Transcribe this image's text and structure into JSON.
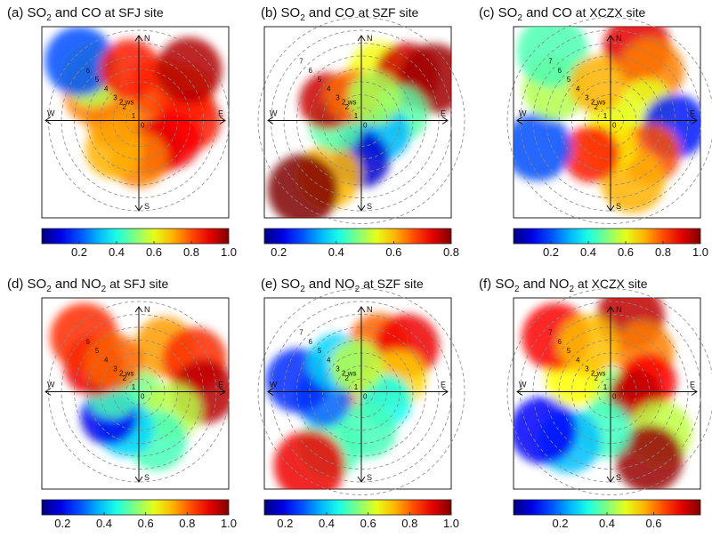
{
  "chart_data": [
    {
      "type": "heatmap",
      "label": "(a)",
      "pollutant": "SO",
      "sub": "2",
      "tail": " and CO",
      "at": " at ",
      "site": "SFJ",
      "site_word": " site",
      "compass": {
        "n": "N",
        "e": "E",
        "s": "S",
        "w": "W"
      },
      "ws_label": "2 ws",
      "ring_labels": [
        "0",
        "1",
        "2",
        "3",
        "4",
        "5",
        "6"
      ],
      "colorbar": {
        "min": 0.0,
        "max": 1.0,
        "ticks": [
          "0.2",
          "0.4",
          "0.6",
          "0.8",
          "1.0"
        ],
        "tick_values": [
          0.2,
          0.4,
          0.6,
          0.8,
          1.0
        ]
      },
      "blobs": [
        {
          "angle": 0,
          "ws": 0,
          "value": 0.78
        },
        {
          "angle": 30,
          "ws": 3,
          "value": 0.8
        },
        {
          "angle": 60,
          "ws": 4,
          "value": 0.82
        },
        {
          "angle": 90,
          "ws": 4,
          "value": 0.85
        },
        {
          "angle": 120,
          "ws": 3,
          "value": 0.88
        },
        {
          "angle": 150,
          "ws": 2.5,
          "value": 0.9
        },
        {
          "angle": 180,
          "ws": 3,
          "value": 0.75
        },
        {
          "angle": 220,
          "ws": 3,
          "value": 0.7
        },
        {
          "angle": 270,
          "ws": 2,
          "value": 0.72
        },
        {
          "angle": 300,
          "ws": 4,
          "value": 0.75
        },
        {
          "angle": 315,
          "ws": 5,
          "value": 0.55
        },
        {
          "angle": 315,
          "ws": 6.5,
          "value": 0.2
        },
        {
          "angle": 350,
          "ws": 4,
          "value": 0.85
        },
        {
          "angle": 45,
          "ws": 5.5,
          "value": 0.95
        }
      ]
    },
    {
      "type": "heatmap",
      "label": "(b)",
      "pollutant": "SO",
      "sub": "2",
      "tail": " and CO",
      "at": " at ",
      "site": "SZF",
      "site_word": " site",
      "compass": {
        "n": "N",
        "e": "E",
        "s": "S",
        "w": "W"
      },
      "ws_label": "2 ws",
      "ring_labels": [
        "0",
        "1",
        "2",
        "3",
        "4",
        "5",
        "6",
        "7"
      ],
      "colorbar": {
        "min": 0.15,
        "max": 0.8,
        "ticks": [
          "0.2",
          "0.4",
          "0.6",
          "0.8"
        ],
        "tick_values": [
          0.2,
          0.4,
          0.6,
          0.8
        ]
      },
      "blobs": [
        {
          "angle": 0,
          "ws": 0,
          "value": 0.3
        },
        {
          "angle": 20,
          "ws": 4,
          "value": 0.55
        },
        {
          "angle": 45,
          "ws": 5,
          "value": 0.75
        },
        {
          "angle": 60,
          "ws": 6.5,
          "value": 0.78
        },
        {
          "angle": 80,
          "ws": 3,
          "value": 0.45
        },
        {
          "angle": 120,
          "ws": 2,
          "value": 0.35
        },
        {
          "angle": 180,
          "ws": 3,
          "value": 0.2
        },
        {
          "angle": 210,
          "ws": 5,
          "value": 0.6
        },
        {
          "angle": 220,
          "ws": 7,
          "value": 0.8
        },
        {
          "angle": 260,
          "ws": 2,
          "value": 0.45
        },
        {
          "angle": 300,
          "ws": 3,
          "value": 0.75
        },
        {
          "angle": 340,
          "ws": 2,
          "value": 0.65
        },
        {
          "angle": 30,
          "ws": 2,
          "value": 0.5
        }
      ]
    },
    {
      "type": "heatmap",
      "label": "(c)",
      "pollutant": "SO",
      "sub": "2",
      "tail": " and CO",
      "at": " at ",
      "site": "XCZX",
      "site_word": " site",
      "compass": {
        "n": "N",
        "e": "E",
        "s": "S",
        "w": "W"
      },
      "ws_label": "2 ws",
      "ring_labels": [
        "0",
        "1",
        "2",
        "3",
        "4",
        "5",
        "6",
        "7"
      ],
      "colorbar": {
        "min": 0.0,
        "max": 1.0,
        "ticks": [
          "0.2",
          "0.4",
          "0.6",
          "0.8",
          "1.0"
        ],
        "tick_values": [
          0.2,
          0.4,
          0.6,
          0.8,
          1.0
        ]
      },
      "blobs": [
        {
          "angle": 0,
          "ws": 0,
          "value": 0.6
        },
        {
          "angle": 20,
          "ws": 6,
          "value": 0.9
        },
        {
          "angle": 40,
          "ws": 5,
          "value": 0.75
        },
        {
          "angle": 70,
          "ws": 3,
          "value": 0.6
        },
        {
          "angle": 95,
          "ws": 5,
          "value": 0.15
        },
        {
          "angle": 130,
          "ws": 4,
          "value": 0.8
        },
        {
          "angle": 160,
          "ws": 5,
          "value": 0.7
        },
        {
          "angle": 180,
          "ws": 2,
          "value": 0.65
        },
        {
          "angle": 210,
          "ws": 3,
          "value": 0.85
        },
        {
          "angle": 250,
          "ws": 6,
          "value": 0.2
        },
        {
          "angle": 300,
          "ws": 5,
          "value": 0.55
        },
        {
          "angle": 320,
          "ws": 7,
          "value": 0.45
        },
        {
          "angle": 340,
          "ws": 3,
          "value": 0.7
        }
      ]
    },
    {
      "type": "heatmap",
      "label": "(d)",
      "pollutant": "SO",
      "sub": "2",
      "tail": " and NO",
      "tail_sub": "2",
      "at": " at ",
      "site": "SFJ",
      "site_word": " site",
      "compass": {
        "n": "N",
        "e": "E",
        "s": "S",
        "w": "W"
      },
      "ws_label": "2 ws",
      "ring_labels": [
        "0",
        "1",
        "2",
        "3",
        "4",
        "5",
        "6"
      ],
      "colorbar": {
        "min": 0.1,
        "max": 1.0,
        "ticks": [
          "0.2",
          "0.4",
          "0.6",
          "0.8",
          "1.0"
        ],
        "tick_values": [
          0.2,
          0.4,
          0.6,
          0.8,
          1.0
        ]
      },
      "blobs": [
        {
          "angle": 0,
          "ws": 0,
          "value": 0.55
        },
        {
          "angle": 30,
          "ws": 4,
          "value": 0.75
        },
        {
          "angle": 60,
          "ws": 5,
          "value": 0.85
        },
        {
          "angle": 90,
          "ws": 5,
          "value": 0.95
        },
        {
          "angle": 120,
          "ws": 3,
          "value": 0.6
        },
        {
          "angle": 160,
          "ws": 4,
          "value": 0.5
        },
        {
          "angle": 200,
          "ws": 3,
          "value": 0.4
        },
        {
          "angle": 230,
          "ws": 3,
          "value": 0.2
        },
        {
          "angle": 270,
          "ws": 2,
          "value": 0.5
        },
        {
          "angle": 300,
          "ws": 4,
          "value": 0.9
        },
        {
          "angle": 315,
          "ws": 6,
          "value": 0.85
        },
        {
          "angle": 320,
          "ws": 3,
          "value": 0.8
        }
      ]
    },
    {
      "type": "heatmap",
      "label": "(e)",
      "pollutant": "SO",
      "sub": "2",
      "tail": " and NO",
      "tail_sub": "2",
      "at": " at ",
      "site": "SZF",
      "site_word": " site",
      "compass": {
        "n": "N",
        "e": "E",
        "s": "S",
        "w": "W"
      },
      "ws_label": "2 ws",
      "ring_labels": [
        "0",
        "1",
        "2",
        "3",
        "4",
        "5",
        "6",
        "7"
      ],
      "colorbar": {
        "min": 0.1,
        "max": 1.0,
        "ticks": [
          "0.2",
          "0.4",
          "0.6",
          "0.8",
          "1.0"
        ],
        "tick_values": [
          0.2,
          0.4,
          0.6,
          0.8,
          1.0
        ]
      },
      "blobs": [
        {
          "angle": 0,
          "ws": 0,
          "value": 0.75
        },
        {
          "angle": 20,
          "ws": 4,
          "value": 0.8
        },
        {
          "angle": 45,
          "ws": 5,
          "value": 0.9
        },
        {
          "angle": 70,
          "ws": 3,
          "value": 0.7
        },
        {
          "angle": 110,
          "ws": 2,
          "value": 0.45
        },
        {
          "angle": 170,
          "ws": 3,
          "value": 0.5
        },
        {
          "angle": 210,
          "ws": 5,
          "value": 0.5
        },
        {
          "angle": 215,
          "ws": 7,
          "value": 0.9
        },
        {
          "angle": 260,
          "ws": 3,
          "value": 0.3
        },
        {
          "angle": 280,
          "ws": 5,
          "value": 0.25
        },
        {
          "angle": 320,
          "ws": 3,
          "value": 0.4
        },
        {
          "angle": 350,
          "ws": 2,
          "value": 0.6
        }
      ]
    },
    {
      "type": "heatmap",
      "label": "(f)",
      "pollutant": "SO",
      "sub": "2",
      "tail": " and NO",
      "tail_sub": "2",
      "at": " at ",
      "site": "XCZX",
      "site_word": " site",
      "compass": {
        "n": "N",
        "e": "E",
        "s": "S",
        "w": "W"
      },
      "ws_label": "2 ws",
      "ring_labels": [
        "0",
        "1",
        "2",
        "3",
        "4",
        "5",
        "6",
        "7"
      ],
      "colorbar": {
        "min": 0.0,
        "max": 0.8,
        "ticks": [
          "0.2",
          "0.4",
          "0.6"
        ],
        "tick_values": [
          0.2,
          0.4,
          0.6
        ]
      },
      "blobs": [
        {
          "angle": 0,
          "ws": 0,
          "value": 0.4
        },
        {
          "angle": 15,
          "ws": 6,
          "value": 0.75
        },
        {
          "angle": 40,
          "ws": 4,
          "value": 0.6
        },
        {
          "angle": 75,
          "ws": 3,
          "value": 0.7
        },
        {
          "angle": 100,
          "ws": 2,
          "value": 0.75
        },
        {
          "angle": 130,
          "ws": 5,
          "value": 0.45
        },
        {
          "angle": 150,
          "ws": 6,
          "value": 0.78
        },
        {
          "angle": 190,
          "ws": 3,
          "value": 0.35
        },
        {
          "angle": 220,
          "ws": 5,
          "value": 0.25
        },
        {
          "angle": 240,
          "ws": 6,
          "value": 0.1
        },
        {
          "angle": 290,
          "ws": 3,
          "value": 0.5
        },
        {
          "angle": 315,
          "ws": 6,
          "value": 0.7
        },
        {
          "angle": 335,
          "ws": 4,
          "value": 0.55
        }
      ]
    }
  ]
}
